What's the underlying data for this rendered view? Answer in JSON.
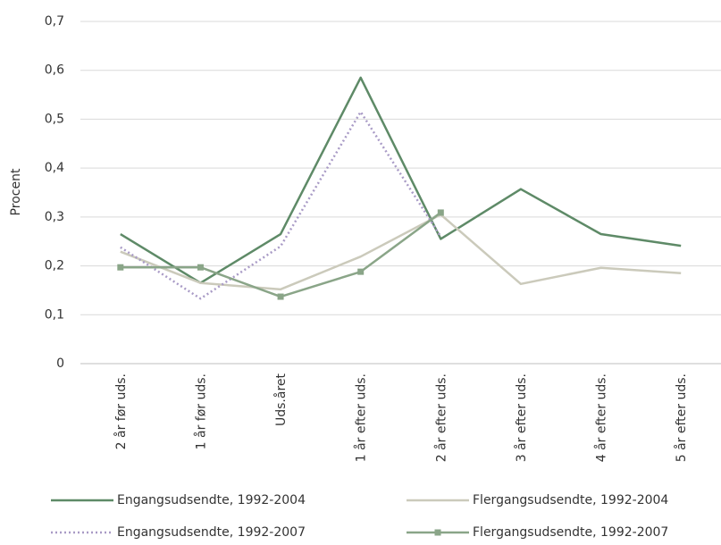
{
  "chart_data": {
    "type": "line",
    "y_label": "Procent",
    "categories": [
      "2 år før uds.",
      "1 år før uds.",
      "Uds.året",
      "1 år efter uds.",
      "2 år efter uds.",
      "3 år efter uds.",
      "4 år efter uds.",
      "5 år efter uds."
    ],
    "series": [
      {
        "name": "Engangsudsendte, 1992-2004",
        "color": "#5e8a67",
        "dash": "solid",
        "values": [
          0.265,
          0.165,
          0.265,
          0.585,
          0.255,
          0.357,
          0.265,
          0.241
        ]
      },
      {
        "name": "Flergangsudsendte, 1992-2004",
        "color": "#cbcabb",
        "dash": "solid",
        "values": [
          0.229,
          0.165,
          0.152,
          0.219,
          0.305,
          0.163,
          0.196,
          0.185
        ]
      },
      {
        "name": "Engangsudsendte, 1992-2007",
        "color": "#a99bc6",
        "dash": "dotted",
        "values": [
          0.238,
          0.133,
          0.24,
          0.515,
          0.26,
          null,
          null,
          null
        ]
      },
      {
        "name": "Flergangsudsendte, 1992-2007",
        "color": "#8aa588",
        "dash": "solid",
        "marker": "square",
        "values": [
          0.197,
          0.197,
          0.137,
          0.188,
          0.309,
          null,
          null,
          null
        ]
      }
    ],
    "ylim": [
      0,
      0.7
    ],
    "yticks": [
      0,
      {
        "value": 0.1,
        "label": "0,1"
      },
      {
        "value": 0.2,
        "label": "0,2"
      },
      {
        "value": 0.3,
        "label": "0,3"
      },
      {
        "value": 0.4,
        "label": "0,4"
      },
      {
        "value": 0.5,
        "label": "0,5"
      },
      {
        "value": 0.6,
        "label": "0,6"
      },
      {
        "value": 0.7,
        "label": "0,7"
      }
    ],
    "grid": true
  }
}
